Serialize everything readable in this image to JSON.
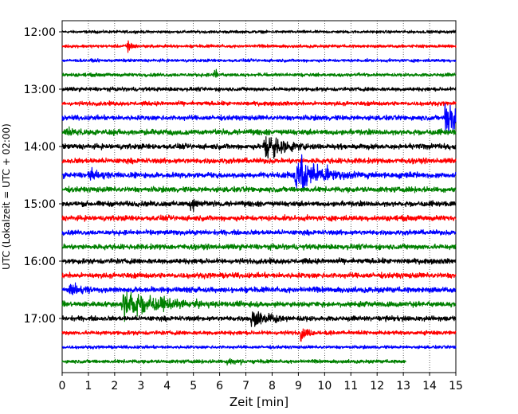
{
  "chart_data": {
    "type": "line",
    "title": "",
    "xlabel": "Zeit  [min]",
    "ylabel": "UTC (Lokalzeit = UTC + 02:00)",
    "xlim": [
      0,
      15
    ],
    "x_ticks": [
      "0",
      "1",
      "2",
      "3",
      "4",
      "5",
      "6",
      "7",
      "8",
      "9",
      "10",
      "11",
      "12",
      "13",
      "14",
      "15"
    ],
    "y_ticks": [
      "12:00",
      "13:00",
      "14:00",
      "15:00",
      "16:00",
      "17:00"
    ],
    "grid": "vertical dotted lines at each minute",
    "trace_interval_min": 15,
    "colors": [
      "#000000",
      "#ff0000",
      "#0000ff",
      "#008000"
    ],
    "traces": [
      {
        "start": "12:00",
        "color": "#000000",
        "noise": 0.2,
        "events": []
      },
      {
        "start": "12:15",
        "color": "#ff0000",
        "noise": 0.22,
        "events": [
          {
            "t": 2.5,
            "amp": 1.4,
            "dur": 0.15
          }
        ]
      },
      {
        "start": "12:30",
        "color": "#0000ff",
        "noise": 0.22,
        "events": []
      },
      {
        "start": "12:45",
        "color": "#008000",
        "noise": 0.25,
        "events": [
          {
            "t": 5.8,
            "amp": 1.8,
            "dur": 0.08
          }
        ]
      },
      {
        "start": "13:00",
        "color": "#000000",
        "noise": 0.28,
        "events": []
      },
      {
        "start": "13:15",
        "color": "#ff0000",
        "noise": 0.3,
        "events": []
      },
      {
        "start": "13:30",
        "color": "#0000ff",
        "noise": 0.35,
        "events": [
          {
            "t": 14.6,
            "amp": 3.5,
            "dur": 0.6
          }
        ]
      },
      {
        "start": "13:45",
        "color": "#008000",
        "noise": 0.4,
        "events": [
          {
            "t": 0.2,
            "amp": 0.8,
            "dur": 0.5
          }
        ]
      },
      {
        "start": "14:00",
        "color": "#000000",
        "noise": 0.38,
        "events": [
          {
            "t": 7.7,
            "amp": 2.6,
            "dur": 0.7
          }
        ]
      },
      {
        "start": "14:15",
        "color": "#ff0000",
        "noise": 0.38,
        "events": []
      },
      {
        "start": "14:30",
        "color": "#0000ff",
        "noise": 0.4,
        "events": [
          {
            "t": 8.9,
            "amp": 3.2,
            "dur": 1.0
          },
          {
            "t": 1.0,
            "amp": 0.7,
            "dur": 0.8
          }
        ]
      },
      {
        "start": "14:45",
        "color": "#008000",
        "noise": 0.38,
        "events": []
      },
      {
        "start": "15:00",
        "color": "#000000",
        "noise": 0.38,
        "events": [
          {
            "t": 4.9,
            "amp": 1.0,
            "dur": 0.4
          }
        ]
      },
      {
        "start": "15:15",
        "color": "#ff0000",
        "noise": 0.38,
        "events": []
      },
      {
        "start": "15:30",
        "color": "#0000ff",
        "noise": 0.35,
        "events": []
      },
      {
        "start": "15:45",
        "color": "#008000",
        "noise": 0.38,
        "events": []
      },
      {
        "start": "16:00",
        "color": "#000000",
        "noise": 0.38,
        "events": []
      },
      {
        "start": "16:15",
        "color": "#ff0000",
        "noise": 0.38,
        "events": []
      },
      {
        "start": "16:30",
        "color": "#0000ff",
        "noise": 0.4,
        "events": [
          {
            "t": 0.3,
            "amp": 0.9,
            "dur": 0.6
          }
        ]
      },
      {
        "start": "16:45",
        "color": "#008000",
        "noise": 0.38,
        "events": [
          {
            "t": 2.3,
            "amp": 2.6,
            "dur": 1.4
          }
        ]
      },
      {
        "start": "17:00",
        "color": "#000000",
        "noise": 0.35,
        "events": [
          {
            "t": 7.2,
            "amp": 1.3,
            "dur": 0.9
          }
        ]
      },
      {
        "start": "17:15",
        "color": "#ff0000",
        "noise": 0.3,
        "events": [
          {
            "t": 9.1,
            "amp": 1.2,
            "dur": 0.3
          }
        ]
      },
      {
        "start": "17:30",
        "color": "#0000ff",
        "noise": 0.22,
        "events": []
      },
      {
        "start": "17:45",
        "color": "#008000",
        "noise": 0.25,
        "events": [
          {
            "t": 6.3,
            "amp": 0.6,
            "dur": 0.6
          }
        ],
        "end": 13.1
      }
    ]
  }
}
